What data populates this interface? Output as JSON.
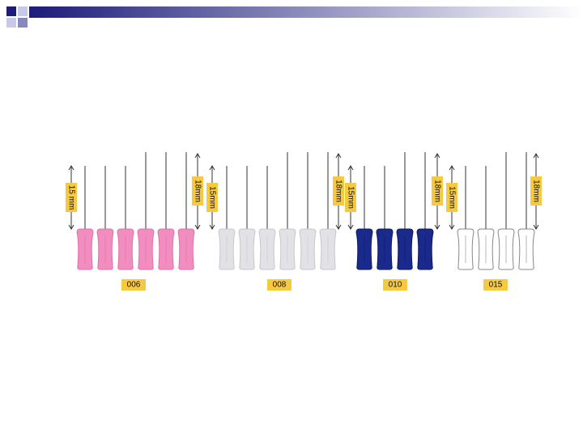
{
  "groups": [
    {
      "size_label": "006",
      "short_length": "15 mm",
      "long_length": "18mm"
    },
    {
      "size_label": "008",
      "short_length": "15mm",
      "long_length": "18mm"
    },
    {
      "size_label": "010",
      "short_length": "15mm",
      "long_length": "18mm"
    },
    {
      "size_label": "015",
      "short_length": "15mm",
      "long_length": "18mm"
    }
  ]
}
